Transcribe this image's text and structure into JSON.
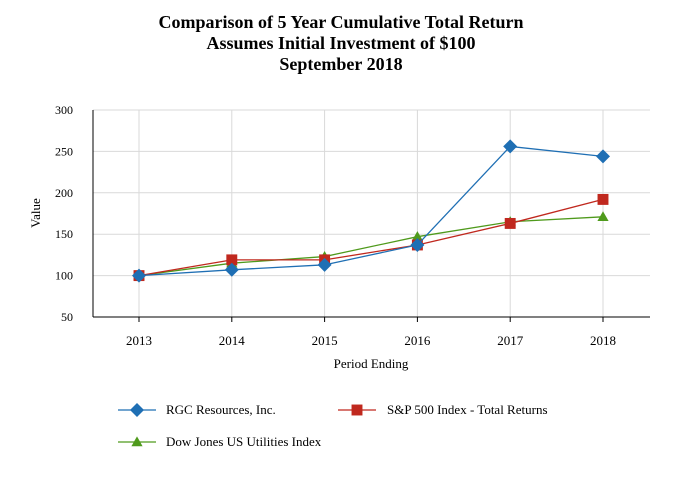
{
  "chart_data": {
    "type": "line",
    "title_lines": [
      "Comparison of 5 Year Cumulative Total Return",
      "Assumes Initial Investment of $100",
      "September 2018"
    ],
    "xlabel": "Period Ending",
    "ylabel": "Value",
    "categories": [
      "2013",
      "2014",
      "2015",
      "2016",
      "2017",
      "2018"
    ],
    "ylim": [
      50,
      300
    ],
    "yticks": [
      50,
      100,
      150,
      200,
      250,
      300
    ],
    "grid": true,
    "legend_position": "bottom",
    "series": [
      {
        "name": "RGC Resources, Inc.",
        "marker": "diamond",
        "color": "#1f6fb4",
        "values": [
          100,
          107,
          113,
          137,
          256,
          244
        ]
      },
      {
        "name": "S&P 500 Index - Total Returns",
        "marker": "square",
        "color": "#c0281e",
        "values": [
          100,
          119,
          119,
          137,
          163,
          192
        ]
      },
      {
        "name": "Dow Jones US Utilities Index",
        "marker": "triangle",
        "color": "#4f9a1c",
        "values": [
          100,
          115,
          123,
          147,
          165,
          171
        ]
      }
    ]
  }
}
